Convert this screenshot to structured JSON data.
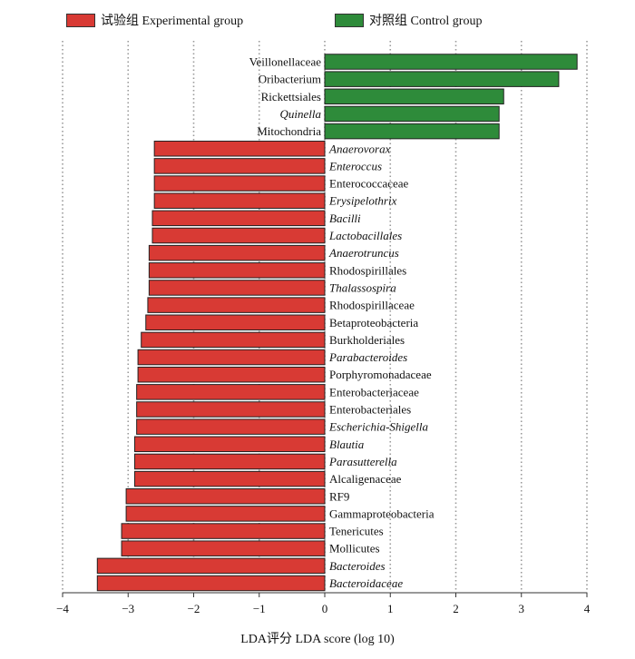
{
  "chart_data": {
    "type": "bar",
    "orientation": "horizontal",
    "title": "",
    "xlabel": "LDA评分  LDA score (log 10)",
    "ylabel": "",
    "xlim": [
      -4,
      4
    ],
    "xticks": [
      -4,
      -3,
      -2,
      -1,
      0,
      1,
      2,
      3,
      4
    ],
    "grid": "vertical dotted",
    "legend": [
      {
        "name": "试验组 Experimental group",
        "color": "#d83a34"
      },
      {
        "name": "对照组 Control group",
        "color": "#2e8b3a"
      }
    ],
    "series": [
      {
        "name": "对照组 Control group",
        "color": "#2e8b3a",
        "categories": [
          "Veillonellaceae",
          "Oribacterium",
          "Rickettsiales",
          "Quinella",
          "Mitochondria"
        ],
        "italic": [
          false,
          false,
          false,
          true,
          false
        ],
        "values": [
          3.85,
          3.57,
          2.73,
          2.66,
          2.66
        ]
      },
      {
        "name": "试验组 Experimental group",
        "color": "#d83a34",
        "categories": [
          "Anaerovorax",
          "Enteroccus",
          "Enterococcaceae",
          "Erysipelothrix",
          "Bacilli",
          "Lactobacillales",
          "Anaerotruncus",
          "Rhodospirillales",
          "Thalassospira",
          "Rhodospirillaceae",
          "Betaproteobacteria",
          "Burkholderiales",
          "Parabacteroides",
          "Porphyromonadaceae",
          "Enterobacteriaceae",
          "Enterobacteriales",
          "Escherichia-Shigella",
          "Blautia",
          "Parasutterella",
          "Alcaligenaceae",
          "RF9",
          "Gammaproteobacteria",
          "Tenericutes",
          "Mollicutes",
          "Bacteroides",
          "Bacteroidaceae"
        ],
        "italic": [
          true,
          true,
          false,
          true,
          true,
          true,
          true,
          false,
          true,
          false,
          false,
          false,
          true,
          false,
          false,
          false,
          true,
          true,
          true,
          false,
          false,
          false,
          false,
          false,
          true,
          true
        ],
        "values": [
          -2.6,
          -2.6,
          -2.6,
          -2.6,
          -2.63,
          -2.63,
          -2.68,
          -2.68,
          -2.68,
          -2.7,
          -2.73,
          -2.8,
          -2.85,
          -2.85,
          -2.87,
          -2.87,
          -2.87,
          -2.9,
          -2.9,
          -2.9,
          -3.03,
          -3.03,
          -3.1,
          -3.1,
          -3.47,
          -3.47
        ]
      }
    ]
  }
}
